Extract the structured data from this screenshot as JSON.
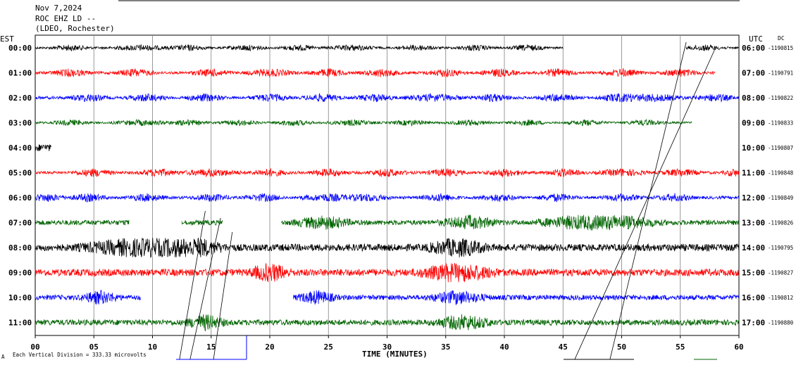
{
  "header": {
    "date": "Nov 7,2024",
    "station": "ROC EHZ LD --",
    "network": "(LDEO, Rochester)"
  },
  "left_axis_label": "EST",
  "right_axis_label": "UTC",
  "dc_label": "DC",
  "xlabel": "TIME (MINUTES)",
  "scale_note": "Each Vertical Division =  333.33 microvolts",
  "corner_mark": "A",
  "colors": {
    "black": "#000000",
    "red": "#ff0000",
    "blue": "#0000ff",
    "green": "#006400"
  },
  "chart_data": {
    "type": "line",
    "title": "",
    "xlabel": "TIME (MINUTES)",
    "ylabel": "",
    "xlim": [
      0,
      60
    ],
    "x_ticks": [
      "00",
      "05",
      "10",
      "15",
      "20",
      "25",
      "30",
      "35",
      "40",
      "45",
      "50",
      "55",
      "60"
    ],
    "grid": true,
    "rows": [
      {
        "est": "00:00",
        "utc": "06:00",
        "dc": "-1190815",
        "color": "black",
        "segments": [
          [
            0,
            45
          ],
          [
            55.5,
            60
          ]
        ],
        "amp": 3,
        "bursts": [
          [
            3,
            2
          ],
          [
            9,
            3
          ],
          [
            13,
            2
          ],
          [
            18,
            2
          ],
          [
            22.5,
            2
          ],
          [
            27,
            2.5
          ],
          [
            32.5,
            2
          ],
          [
            37.5,
            2
          ],
          [
            42,
            2
          ],
          [
            57,
            2
          ]
        ]
      },
      {
        "est": "01:00",
        "utc": "07:00",
        "dc": "-1190791",
        "color": "red",
        "segments": [
          [
            0,
            58
          ]
        ],
        "amp": 4,
        "bursts": [
          [
            3,
            2
          ],
          [
            8.5,
            2
          ],
          [
            15,
            2
          ],
          [
            20,
            2.5
          ],
          [
            25,
            2
          ],
          [
            29.5,
            2
          ],
          [
            35,
            2
          ],
          [
            39.5,
            2
          ],
          [
            44.5,
            2
          ],
          [
            50,
            2
          ],
          [
            55,
            2
          ]
        ]
      },
      {
        "est": "02:00",
        "utc": "08:00",
        "dc": "-1190822",
        "color": "blue",
        "segments": [
          [
            0,
            60
          ]
        ],
        "amp": 4,
        "bursts": [
          [
            4.5,
            2
          ],
          [
            9.5,
            2
          ],
          [
            14.5,
            2
          ],
          [
            20,
            2
          ],
          [
            24.5,
            2
          ],
          [
            29,
            2
          ],
          [
            34,
            3
          ],
          [
            39,
            2
          ],
          [
            44.5,
            2
          ],
          [
            49.5,
            2
          ],
          [
            52.5,
            3.5
          ],
          [
            58,
            2
          ]
        ]
      },
      {
        "est": "03:00",
        "utc": "09:00",
        "dc": "-1190833",
        "color": "green",
        "segments": [
          [
            0,
            56
          ]
        ],
        "amp": 3,
        "bursts": [
          [
            3,
            2
          ],
          [
            9,
            3
          ],
          [
            13,
            2
          ],
          [
            17.5,
            2
          ],
          [
            22,
            2
          ],
          [
            27,
            2.5
          ],
          [
            32,
            2
          ],
          [
            37,
            2
          ],
          [
            42,
            2
          ],
          [
            47,
            2
          ],
          [
            52,
            2
          ]
        ]
      },
      {
        "est": "04:00",
        "utc": "10:00",
        "dc": "-1190807",
        "color": "black",
        "segments": [
          [
            0,
            1.4
          ]
        ],
        "amp": 10,
        "bursts": []
      },
      {
        "est": "05:00",
        "utc": "11:00",
        "dc": "-1190848",
        "color": "red",
        "segments": [
          [
            0,
            60
          ]
        ],
        "amp": 4,
        "bursts": [
          [
            5,
            2
          ],
          [
            10.5,
            2
          ],
          [
            15,
            3
          ],
          [
            20,
            2
          ],
          [
            25,
            2
          ],
          [
            30,
            2
          ],
          [
            35,
            2
          ],
          [
            40,
            2
          ],
          [
            45,
            2
          ],
          [
            50,
            2.5
          ],
          [
            55,
            2
          ],
          [
            59.5,
            1
          ]
        ]
      },
      {
        "est": "06:00",
        "utc": "12:00",
        "dc": "-1190849",
        "color": "blue",
        "segments": [
          [
            0,
            60
          ]
        ],
        "amp": 4,
        "bursts": [
          [
            1,
            2
          ],
          [
            4.5,
            2
          ],
          [
            9.5,
            2
          ],
          [
            15,
            2
          ],
          [
            19.5,
            2
          ],
          [
            25,
            3
          ],
          [
            28.5,
            2
          ],
          [
            34.5,
            2
          ],
          [
            39.5,
            2
          ],
          [
            44.5,
            2
          ],
          [
            50,
            2
          ],
          [
            54.5,
            2
          ]
        ]
      },
      {
        "est": "07:00",
        "utc": "13:00",
        "dc": "-1190826",
        "color": "green",
        "segments": [
          [
            0,
            8
          ],
          [
            12.5,
            16
          ],
          [
            21,
            60
          ]
        ],
        "amp": 7,
        "bursts": [
          [
            24.5,
            3
          ],
          [
            37,
            3
          ],
          [
            46,
            4
          ],
          [
            50,
            4
          ]
        ]
      },
      {
        "est": "08:00",
        "utc": "14:00",
        "dc": "-1190795",
        "color": "black",
        "segments": [
          [
            0,
            60
          ]
        ],
        "amp": 10,
        "bursts": [
          [
            9,
            6
          ],
          [
            13.5,
            3
          ],
          [
            36,
            3
          ]
        ]
      },
      {
        "est": "09:00",
        "utc": "15:00",
        "dc": "-1190827",
        "color": "red",
        "segments": [
          [
            0,
            60
          ]
        ],
        "amp": 10,
        "bursts": [
          [
            36,
            4
          ],
          [
            20,
            2
          ]
        ]
      },
      {
        "est": "10:00",
        "utc": "16:00",
        "dc": "-1190812",
        "color": "blue",
        "segments": [
          [
            0,
            9
          ],
          [
            22,
            60
          ]
        ],
        "amp": 7,
        "bursts": [
          [
            5.5,
            2
          ],
          [
            24,
            2
          ],
          [
            36,
            3
          ]
        ]
      },
      {
        "est": "11:00",
        "utc": "17:00",
        "dc": "-1190880",
        "color": "green",
        "segments": [
          [
            0,
            60
          ]
        ],
        "amp": 8,
        "bursts": [
          [
            36.5,
            3
          ],
          [
            14.5,
            2
          ]
        ]
      }
    ]
  }
}
